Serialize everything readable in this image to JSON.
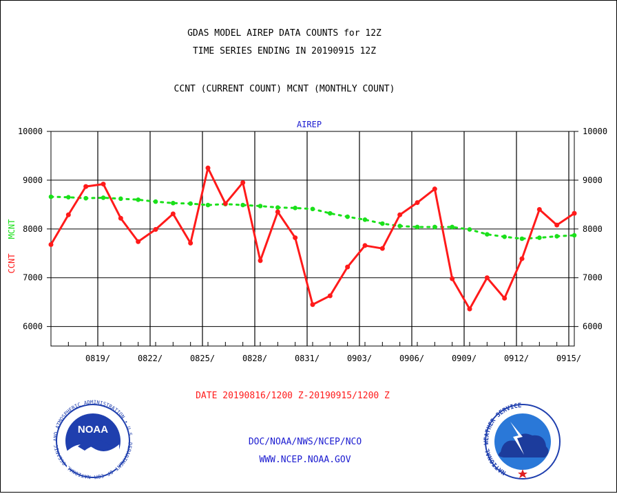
{
  "header": {
    "title_line1": "GDAS MODEL AIREP DATA COUNTS for 12Z",
    "title_line2": "TIME SERIES ENDING IN 20190915 12Z",
    "subtitle": "CCNT (CURRENT COUNT) MCNT (MONTHLY COUNT)"
  },
  "footer": {
    "date_range": "DATE 20190816/1200 Z-20190915/1200 Z",
    "org_line": "DOC/NOAA/NWS/NCEP/NCO",
    "url": "WWW.NCEP.NOAA.GOV"
  },
  "logos": {
    "left": {
      "name": "NOAA",
      "ring_text": "NATIONAL OCEANIC AND ATMOSPHERIC ADMINISTRATION • U.S. DEPARTMENT OF COMMERCE"
    },
    "right": {
      "ring_text": "NATIONAL WEATHER SERVICE"
    }
  },
  "colors": {
    "ccnt": "#ff1a1a",
    "mcnt": "#1ae01a",
    "title": "#000000",
    "panel_title": "#1a1ad0",
    "date_text": "#ff1a1a",
    "link_text": "#1a1ad0",
    "noaa_blue": "#1f3fae",
    "nws_blue": "#2a78d8"
  },
  "chart_data": {
    "type": "line",
    "title": "AIREP",
    "ylabel_ccnt": "CCNT",
    "ylabel_mcnt": "MCNT",
    "ylim": [
      5600,
      10000
    ],
    "yticks": [
      6000,
      7000,
      8000,
      9000,
      10000
    ],
    "grid": true,
    "xlim": [
      0,
      30
    ],
    "x_tick_labels": [
      {
        "x": 3,
        "label": "0819/"
      },
      {
        "x": 6,
        "label": "0822/"
      },
      {
        "x": 9,
        "label": "0825/"
      },
      {
        "x": 12,
        "label": "0828/"
      },
      {
        "x": 15,
        "label": "0831/"
      },
      {
        "x": 18,
        "label": "0903/"
      },
      {
        "x": 21,
        "label": "0906/"
      },
      {
        "x": 24,
        "label": "0909/"
      },
      {
        "x": 27,
        "label": "0912/"
      },
      {
        "x": 30,
        "label": "0915/"
      }
    ],
    "x": [
      0,
      1,
      2,
      3,
      4,
      5,
      6,
      7,
      8,
      9,
      10,
      11,
      12,
      13,
      14,
      15,
      16,
      17,
      18,
      19,
      20,
      21,
      22,
      23,
      24,
      25,
      26,
      27,
      28,
      29,
      30
    ],
    "series": [
      {
        "name": "CCNT",
        "values": [
          7680,
          8290,
          8870,
          8920,
          8220,
          7740,
          7990,
          8310,
          7710,
          9250,
          8520,
          8950,
          7350,
          8350,
          7820,
          6450,
          6630,
          7220,
          7660,
          7600,
          8290,
          8540,
          8820,
          6980,
          6360,
          7000,
          6580,
          7390,
          8400,
          8080,
          8320
        ]
      },
      {
        "name": "MCNT",
        "values": [
          8660,
          8650,
          8630,
          8640,
          8620,
          8600,
          8560,
          8530,
          8520,
          8490,
          8510,
          8490,
          8470,
          8440,
          8430,
          8410,
          8320,
          8250,
          8190,
          8110,
          8060,
          8040,
          8040,
          8040,
          7990,
          7890,
          7840,
          7800,
          7820,
          7850,
          7870
        ]
      }
    ]
  }
}
